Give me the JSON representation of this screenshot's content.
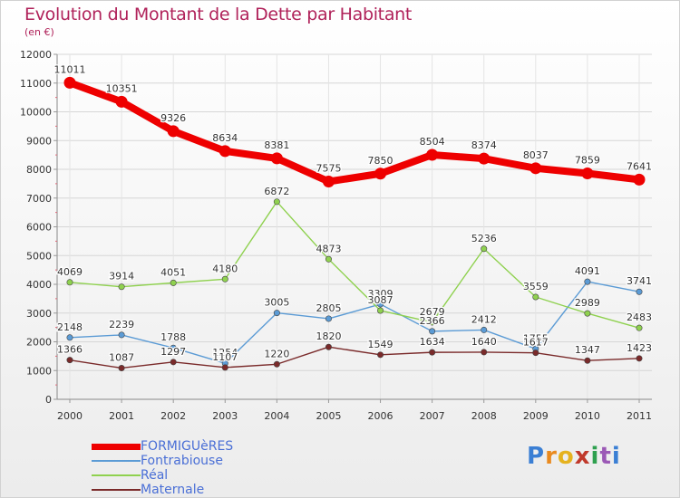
{
  "header": {
    "title": "Evolution du Montant de la Dette par Habitant",
    "subtitle": "(en €)"
  },
  "brand": {
    "logo_text": "Proxiti",
    "letter_colors": [
      "#3b7fd4",
      "#e98a1f",
      "#e5b21f",
      "#c0392b",
      "#2ea04f",
      "#9b59b6",
      "#3b7fd4"
    ]
  },
  "chart_data": {
    "type": "line",
    "title": "Evolution du Montant de la Dette par Habitant",
    "subtitle": "(en €)",
    "xlabel": "",
    "ylabel": "",
    "x": [
      "2000",
      "2001",
      "2002",
      "2003",
      "2004",
      "2005",
      "2006",
      "2007",
      "2008",
      "2009",
      "2010",
      "2011"
    ],
    "ylim": [
      0,
      12000
    ],
    "yticks": [
      0,
      1000,
      2000,
      3000,
      4000,
      5000,
      6000,
      7000,
      8000,
      9000,
      10000,
      11000,
      12000
    ],
    "grid": true,
    "legend": "bottom-left",
    "series": [
      {
        "name": "FORMIGUèRES",
        "color": "#ee0000",
        "thickness": "thick",
        "values": [
          11011,
          10351,
          9326,
          8634,
          8381,
          7575,
          7850,
          8504,
          8374,
          8037,
          7859,
          7641
        ],
        "labels": [
          "11011",
          "10351",
          "9326",
          "8634",
          "8381",
          "7575",
          "7850",
          "8504",
          "8374",
          "8037",
          "7859",
          "7641"
        ]
      },
      {
        "name": "Fontrabiouse",
        "color": "#5b9bd5",
        "thickness": "thin",
        "values": [
          2148,
          2239,
          1788,
          1254,
          3005,
          2805,
          3309,
          2366,
          2412,
          1755,
          4091,
          3741
        ],
        "labels": [
          "2148",
          "2239",
          "1788",
          "1254",
          "3005",
          "2805",
          "3309",
          "2366",
          "2412",
          "1755",
          "4091",
          "3741"
        ]
      },
      {
        "name": "Réal",
        "color": "#8fd14f",
        "thickness": "thin",
        "values": [
          4069,
          3914,
          4051,
          4180,
          6872,
          4873,
          3087,
          2679,
          5236,
          3559,
          2989,
          2483
        ],
        "labels": [
          "4069",
          "3914",
          "4051",
          "4180",
          "6872",
          "4873",
          "3087",
          "2679",
          "5236",
          "3559",
          "2989",
          "2483"
        ]
      },
      {
        "name": "Maternale",
        "color": "#7a2a2a",
        "thickness": "thin",
        "values": [
          1366,
          1087,
          1297,
          1107,
          1220,
          1820,
          1549,
          1634,
          1640,
          1617,
          1347,
          1423
        ],
        "labels": [
          "1366",
          "1087",
          "1297",
          "1107",
          "1220",
          "1820",
          "1549",
          "1634",
          "1640",
          "1617",
          "1347",
          "1423"
        ]
      }
    ]
  }
}
